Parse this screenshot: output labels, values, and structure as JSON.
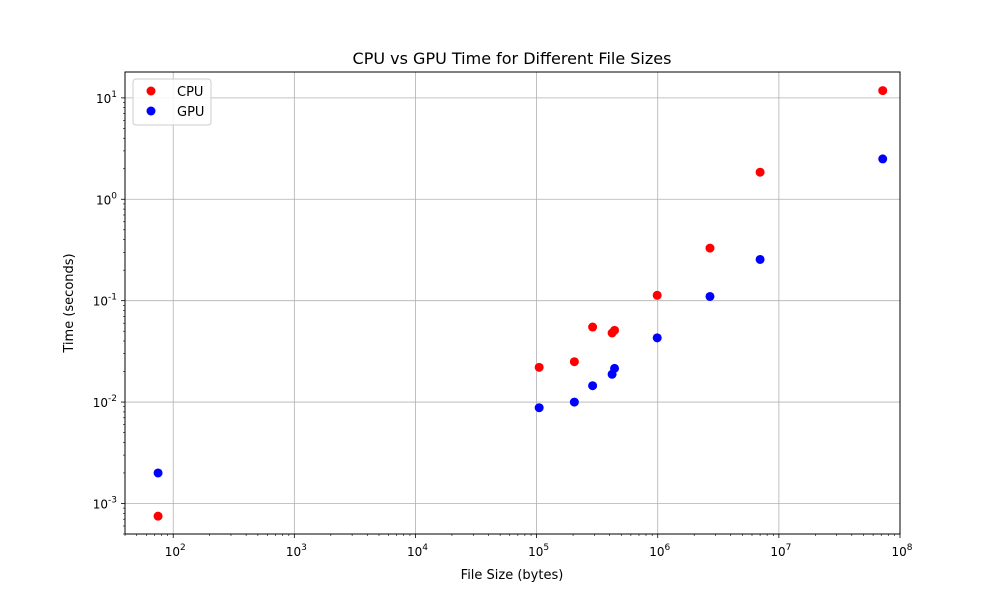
{
  "chart_data": {
    "type": "scatter",
    "title": "CPU vs GPU Time for Different File Sizes",
    "xlabel": "File Size (bytes)",
    "ylabel": "Time (seconds)",
    "xscale": "log",
    "yscale": "log",
    "xlim": [
      40,
      100000000
    ],
    "ylim": [
      0.0005,
      18
    ],
    "xticks": [
      100,
      1000,
      10000,
      100000,
      1000000,
      10000000,
      100000000
    ],
    "yticks": [
      0.001,
      0.01,
      0.1,
      1,
      10
    ],
    "grid": true,
    "legend_position": "top-left",
    "series": [
      {
        "name": "CPU",
        "color": "#ff0000",
        "points": [
          [
            75,
            0.00075
          ],
          [
            105000,
            0.022
          ],
          [
            205000,
            0.025
          ],
          [
            290000,
            0.055
          ],
          [
            420000,
            0.048
          ],
          [
            440000,
            0.051
          ],
          [
            990000,
            0.113
          ],
          [
            2700000,
            0.33
          ],
          [
            7000000,
            1.85
          ],
          [
            72000000,
            11.8
          ]
        ]
      },
      {
        "name": "GPU",
        "color": "#0000ff",
        "points": [
          [
            75,
            0.002
          ],
          [
            105000,
            0.0088
          ],
          [
            205000,
            0.01
          ],
          [
            290000,
            0.0145
          ],
          [
            420000,
            0.0188
          ],
          [
            440000,
            0.0215
          ],
          [
            990000,
            0.043
          ],
          [
            2700000,
            0.11
          ],
          [
            7000000,
            0.255
          ],
          [
            72000000,
            2.5
          ]
        ]
      }
    ]
  }
}
